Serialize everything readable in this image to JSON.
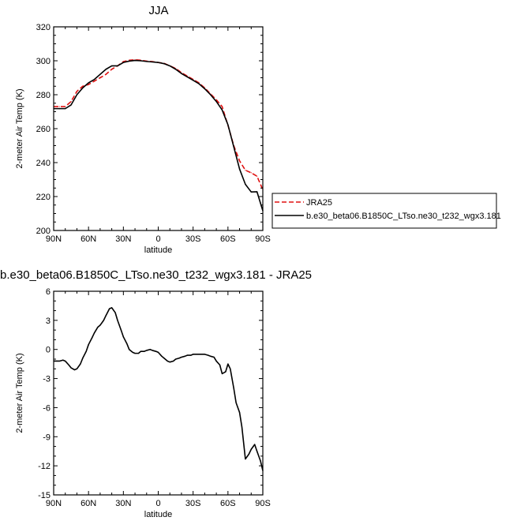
{
  "chart_data": [
    {
      "type": "line",
      "title": "JJA",
      "xlabel": "latitude",
      "ylabel": "2-meter Air Temp (K)",
      "xlim": [
        90,
        -90
      ],
      "ylim": [
        200,
        320
      ],
      "xticks": [
        90,
        60,
        30,
        0,
        -30,
        -60,
        -90
      ],
      "xtick_labels": [
        "90N",
        "60N",
        "30N",
        "0",
        "30S",
        "60S",
        "90S"
      ],
      "yticks": [
        200,
        220,
        240,
        260,
        280,
        300,
        320
      ],
      "ytick_labels": [
        "200",
        "220",
        "240",
        "260",
        "280",
        "300",
        "320"
      ],
      "legend_position": "outside-right",
      "series": [
        {
          "name": "JRA25",
          "color": "#e01010",
          "dash": "dashed",
          "x": [
            90,
            85,
            80,
            75,
            70,
            65,
            60,
            55,
            50,
            45,
            40,
            35,
            30,
            25,
            20,
            15,
            10,
            5,
            0,
            -5,
            -10,
            -15,
            -20,
            -25,
            -30,
            -35,
            -40,
            -45,
            -50,
            -55,
            -60,
            -65,
            -70,
            -75,
            -80,
            -85,
            -90
          ],
          "y": [
            273,
            273,
            273,
            276,
            282,
            285,
            286,
            288,
            290,
            292,
            295,
            297,
            299.5,
            300.3,
            300.6,
            300.3,
            299.8,
            299.5,
            299,
            298.5,
            297,
            295.5,
            293,
            291,
            289,
            287,
            284,
            280.5,
            277,
            273,
            262,
            250,
            241,
            235.5,
            234,
            232,
            224
          ]
        },
        {
          "name": "b.e30_beta06.B1850C_LTso.ne30_t232_wgx3.181",
          "color": "#000000",
          "dash": "solid",
          "x": [
            90,
            85,
            80,
            75,
            70,
            65,
            60,
            55,
            50,
            45,
            40,
            35,
            30,
            25,
            20,
            15,
            10,
            5,
            0,
            -5,
            -10,
            -15,
            -20,
            -25,
            -30,
            -35,
            -40,
            -45,
            -50,
            -55,
            -60,
            -65,
            -70,
            -75,
            -80,
            -85,
            -90
          ],
          "y": [
            271.8,
            271.8,
            271.8,
            274,
            280,
            284,
            287,
            289,
            292,
            295,
            297,
            297,
            299,
            299.8,
            300.2,
            300,
            299.6,
            299.3,
            299,
            298.3,
            297,
            295,
            292.5,
            290.5,
            288.5,
            286.5,
            283.5,
            280,
            276,
            271,
            262.3,
            249.3,
            236.2,
            227.2,
            222.7,
            222.8,
            211.6
          ]
        }
      ]
    },
    {
      "type": "line",
      "title": "b.e30_beta06.B1850C_LTso.ne30_t232_wgx3.181 - JRA25",
      "xlabel": "latitude",
      "ylabel": "2-meter Air Temp (K)",
      "xlim": [
        90,
        -90
      ],
      "ylim": [
        -15,
        6
      ],
      "xticks": [
        90,
        60,
        30,
        0,
        -30,
        -60,
        -90
      ],
      "xtick_labels": [
        "90N",
        "60N",
        "30N",
        "0",
        "30S",
        "60S",
        "90S"
      ],
      "yticks": [
        -15,
        -12,
        -9,
        -6,
        -3,
        0,
        3,
        6
      ],
      "ytick_labels": [
        "-15",
        "-12",
        "-9",
        "-6",
        "-3",
        "0",
        "3",
        "6"
      ],
      "series": [
        {
          "color": "#000000",
          "dash": "solid",
          "x": [
            90,
            87,
            85,
            82,
            80,
            77,
            75,
            72,
            70,
            67,
            65,
            62,
            60,
            57,
            55,
            52,
            50,
            47,
            45,
            42,
            40,
            37,
            35,
            32,
            30,
            27,
            25,
            22,
            20,
            17,
            15,
            12,
            10,
            7,
            5,
            2,
            0,
            -3,
            -5,
            -8,
            -10,
            -13,
            -15,
            -18,
            -20,
            -23,
            -25,
            -28,
            -30,
            -33,
            -35,
            -38,
            -40,
            -43,
            -45,
            -48,
            -50,
            -53,
            -55,
            -58,
            -60,
            -62,
            -65,
            -67,
            -70,
            -72,
            -75,
            -78,
            -80,
            -83,
            -85,
            -88,
            -90
          ],
          "y": [
            -1.2,
            -1.2,
            -1.2,
            -1.1,
            -1.2,
            -1.6,
            -1.9,
            -2.1,
            -2.0,
            -1.5,
            -0.9,
            -0.2,
            0.5,
            1.2,
            1.7,
            2.3,
            2.5,
            3.0,
            3.5,
            4.2,
            4.3,
            3.8,
            3.0,
            2.0,
            1.3,
            0.6,
            0.0,
            -0.3,
            -0.4,
            -0.4,
            -0.2,
            -0.2,
            -0.1,
            0.0,
            -0.1,
            -0.2,
            -0.3,
            -0.7,
            -0.9,
            -1.2,
            -1.3,
            -1.2,
            -1.0,
            -0.9,
            -0.8,
            -0.7,
            -0.6,
            -0.6,
            -0.5,
            -0.5,
            -0.5,
            -0.5,
            -0.5,
            -0.6,
            -0.7,
            -0.8,
            -1.2,
            -1.6,
            -2.5,
            -2.3,
            -1.5,
            -2.0,
            -4.0,
            -5.5,
            -6.5,
            -8.0,
            -11.3,
            -10.8,
            -10.3,
            -9.8,
            -10.5,
            -11.5,
            -12.5
          ]
        }
      ]
    }
  ]
}
